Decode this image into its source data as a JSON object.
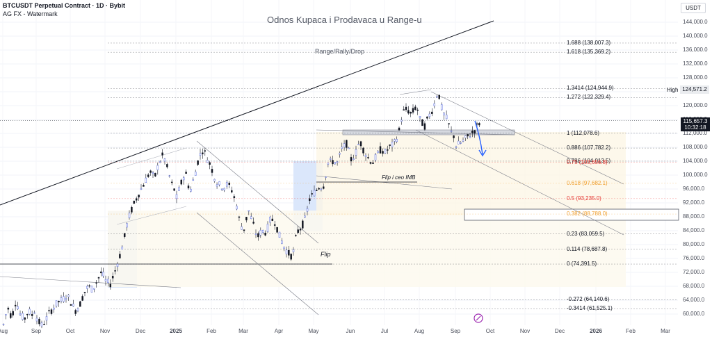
{
  "header": {
    "symbol_line": "BTCUSDT Perpetual Contract · 1D · Bybit",
    "watermark_line": "AG FX - Watermark"
  },
  "chart_title": "Odnos Kupaca i Prodavaca u Range-u",
  "labels": {
    "range_rally_drop": "Range/Rally/Drop",
    "flip": "Flip",
    "flip_ceo": "Flip i ceo IMB"
  },
  "price_axis": {
    "currency_button": "USDT",
    "ticks": [
      "144,000.0",
      "140,000.0",
      "136,000.0",
      "132,000.0",
      "128,000.0",
      "124,000.0",
      "120,000.0",
      "116,000.0",
      "112,000.0",
      "108,000.0",
      "104,000.0",
      "100,000.0",
      "96,000.0",
      "92,000.0",
      "88,000.0",
      "84,000.0",
      "80,000.0",
      "76,000.0",
      "72,000.0",
      "68,000.0",
      "64,000.0",
      "60,000.0"
    ],
    "tick_values": [
      144000,
      140000,
      136000,
      132000,
      128000,
      124000,
      120000,
      116000,
      112000,
      108000,
      104000,
      100000,
      96000,
      92000,
      88000,
      84000,
      80000,
      76000,
      72000,
      68000,
      64000,
      60000
    ],
    "high_label": "High",
    "high_value": "124,571.2",
    "last_price": "115,657.3",
    "countdown": "10:32:18"
  },
  "time_axis": {
    "labels": [
      "Aug",
      "Sep",
      "Oct",
      "Nov",
      "Dec",
      "2025",
      "Feb",
      "Mar",
      "Apr",
      "May",
      "Jun",
      "Jul",
      "Aug",
      "Sep",
      "Oct",
      "Nov",
      "Dec",
      "2026",
      "Feb",
      "Mar"
    ]
  },
  "fib_levels": [
    {
      "text": "1.688 (138,007.3)",
      "ratio": 1.688,
      "price": 138007.3,
      "color": "#131722"
    },
    {
      "text": "1.618 (135,369.2)",
      "ratio": 1.618,
      "price": 135369.2,
      "color": "#131722"
    },
    {
      "text": "1.3414 (124,944.9)",
      "ratio": 1.3414,
      "price": 124944.9,
      "color": "#131722"
    },
    {
      "text": "1.272 (122,329.4)",
      "ratio": 1.272,
      "price": 122329.4,
      "color": "#131722"
    },
    {
      "text": "1 (112,078.6)",
      "ratio": 1,
      "price": 112078.6,
      "color": "#131722"
    },
    {
      "text": "0.886 (107,782.2)",
      "ratio": 0.886,
      "price": 107782.2,
      "color": "#131722"
    },
    {
      "text": "0.786 (104,013.5)",
      "ratio": 0.786,
      "price": 104013.5,
      "color": "#131722"
    },
    {
      "text": "0.75 (103,656.8)",
      "ratio": 0.75,
      "price": 103656.8,
      "color": "#e53935"
    },
    {
      "text": "0.618 (97,682.1)",
      "ratio": 0.618,
      "price": 97682.1,
      "color": "#f0a030"
    },
    {
      "text": "0.5 (93,235.0)",
      "ratio": 0.5,
      "price": 93235.0,
      "color": "#e53935"
    },
    {
      "text": "0.382 (88,788.0)",
      "ratio": 0.382,
      "price": 88788.0,
      "color": "#f0a030"
    },
    {
      "text": "0.23 (83,059.5)",
      "ratio": 0.23,
      "price": 83059.5,
      "color": "#131722"
    },
    {
      "text": "0.114 (78,687.8)",
      "ratio": 0.114,
      "price": 78687.8,
      "color": "#131722"
    },
    {
      "text": "0 (74,391.5)",
      "ratio": 0,
      "price": 74391.5,
      "color": "#131722"
    },
    {
      "text": "-0.272 (64,140.6)",
      "ratio": -0.272,
      "price": 64140.6,
      "color": "#131722"
    },
    {
      "text": "-0.3414 (61,525.1)",
      "ratio": -0.3414,
      "price": 61525.1,
      "color": "#131722"
    }
  ],
  "chart_data": {
    "type": "candlestick",
    "interval": "1D",
    "y_range": [
      58000,
      146000
    ],
    "series": [
      {
        "x": "2024-08",
        "path": [
          57000,
          62000,
          59000,
          64000,
          60000,
          58500,
          61000,
          59500,
          63000
        ]
      },
      {
        "x": "2024-09",
        "path": [
          59000,
          56500,
          58000,
          60500,
          62000,
          63500,
          64000,
          65500,
          63500
        ]
      },
      {
        "x": "2024-10",
        "path": [
          63500,
          61000,
          62500,
          66000,
          68000,
          67000,
          69500,
          72000,
          70000
        ]
      },
      {
        "x": "2024-11",
        "path": [
          69500,
          68500,
          72000,
          76000,
          80500,
          87000,
          90500,
          93500,
          96000
        ]
      },
      {
        "x": "2024-12",
        "path": [
          96000,
          98500,
          101000,
          99000,
          103500,
          106000,
          101500,
          97000,
          94500
        ]
      },
      {
        "x": "2025-01",
        "path": [
          93500,
          97500,
          101000,
          95000,
          99500,
          105000,
          107500,
          104500,
          102000
        ]
      },
      {
        "x": "2025-02",
        "path": [
          101500,
          98000,
          97000,
          96500,
          97500,
          95500,
          92000,
          86000,
          84000
        ]
      },
      {
        "x": "2025-03",
        "path": [
          84500,
          90000,
          86000,
          82000,
          84000,
          83500,
          87500,
          86500,
          82500
        ]
      },
      {
        "x": "2025-04",
        "path": [
          82500,
          79500,
          77500,
          76500,
          83500,
          85000,
          87500,
          93500,
          94500
        ]
      },
      {
        "x": "2025-05",
        "path": [
          95000,
          96500,
          97000,
          103500,
          104000,
          103500,
          107500,
          109000,
          104500
        ]
      },
      {
        "x": "2025-06",
        "path": [
          104500,
          106000,
          110000,
          107000,
          105000,
          103500,
          105500,
          107500,
          106500
        ]
      },
      {
        "x": "2025-07",
        "path": [
          106500,
          108000,
          109000,
          111500,
          118000,
          119000,
          117500,
          119500,
          118000
        ]
      },
      {
        "x": "2025-08",
        "path": [
          116000,
          114000,
          117000,
          119500,
          124500,
          118000,
          116000,
          112000,
          110500
        ]
      },
      {
        "x": "2025-09",
        "path": [
          108500,
          109500,
          111000,
          112500,
          115000,
          116500,
          115657
        ]
      }
    ],
    "high": 124571.2,
    "last": 115657.3,
    "zones": [
      {
        "name": "Range/Rally/Drop",
        "price_low": 88788,
        "price_high": 112078
      },
      {
        "name": "Flip",
        "price": 74391.5
      },
      {
        "name": "Flip i ceo IMB",
        "price": 98000
      }
    ]
  }
}
